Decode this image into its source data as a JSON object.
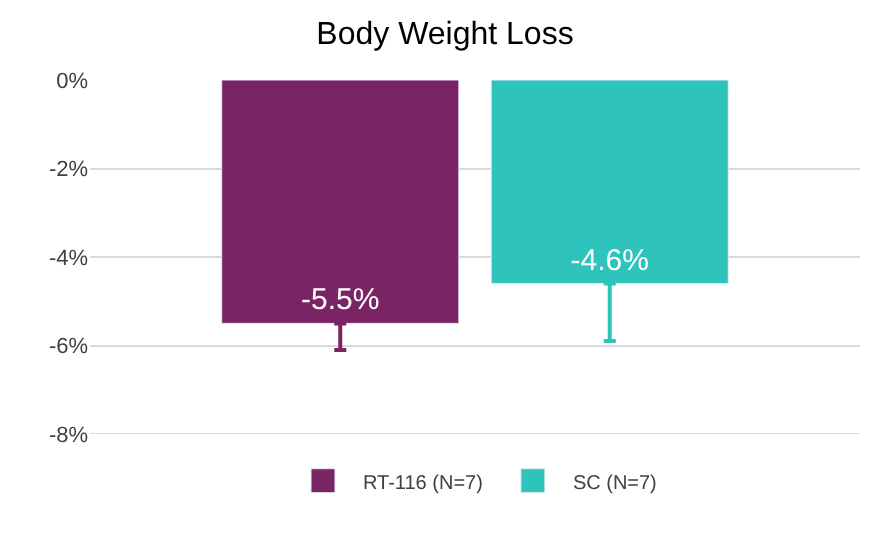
{
  "chart_data": {
    "type": "bar",
    "title": "Body Weight Loss",
    "categories": [
      null
    ],
    "series": [
      {
        "name": "RT-116 (N=7)",
        "color": "#7b2465",
        "values": [
          -5.5
        ],
        "errors": [
          [
            -6.1,
            -5.5
          ]
        ],
        "value_labels": [
          "-5.5%"
        ]
      },
      {
        "name": "SC (N=7)",
        "color": "#2ec4bc",
        "values": [
          -4.6
        ],
        "errors": [
          [
            -5.9,
            -4.6
          ]
        ],
        "value_labels": [
          "-4.6%"
        ]
      }
    ],
    "ylim": [
      -8,
      0
    ],
    "yticks": [
      {
        "value": 0,
        "label": "0%"
      },
      {
        "value": -2,
        "label": "-2%"
      },
      {
        "value": -4,
        "label": "-4%"
      },
      {
        "value": -6,
        "label": "-6%"
      },
      {
        "value": -8,
        "label": "-8%"
      }
    ],
    "grid": "y",
    "legend": "bottom",
    "tick_labels": "y"
  }
}
